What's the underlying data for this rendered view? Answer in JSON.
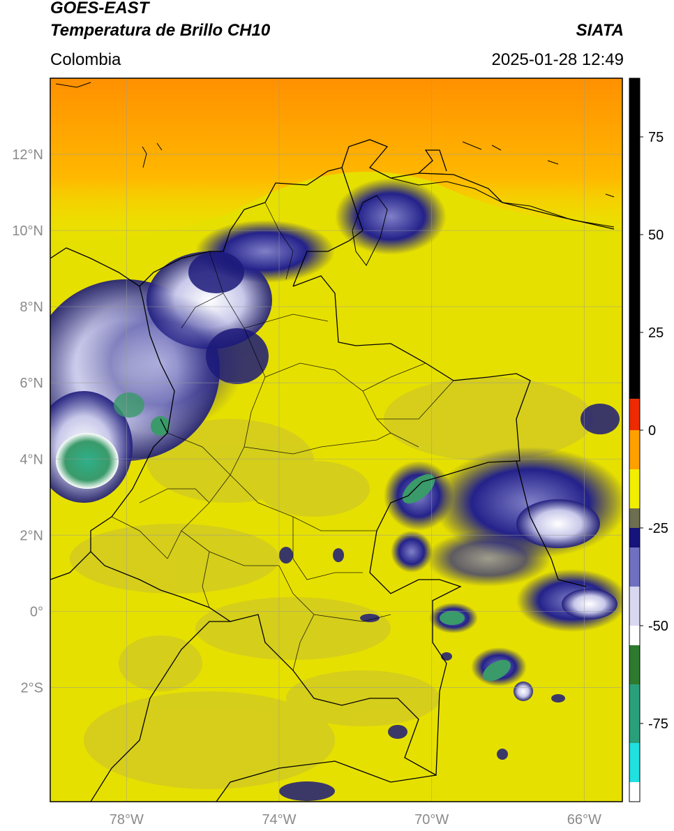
{
  "header": {
    "satellite": "GOES-EAST",
    "product": "Temperatura de Brillo CH10",
    "organization": "SIATA",
    "region": "Colombia",
    "timestamp": "2025-01-28 12:49"
  },
  "map": {
    "lon_range": [
      -80,
      -65
    ],
    "lat_range": [
      -5,
      14
    ],
    "lon_ticks": [
      {
        "value": -78,
        "label": "78°W"
      },
      {
        "value": -74,
        "label": "74°W"
      },
      {
        "value": -70,
        "label": "70°W"
      },
      {
        "value": -66,
        "label": "66°W"
      }
    ],
    "lat_ticks": [
      {
        "value": 12,
        "label": "12°N"
      },
      {
        "value": 10,
        "label": "10°N"
      },
      {
        "value": 8,
        "label": "8°N"
      },
      {
        "value": 6,
        "label": "6°N"
      },
      {
        "value": 4,
        "label": "4°N"
      },
      {
        "value": 2,
        "label": "2°N"
      },
      {
        "value": 0,
        "label": "0°"
      },
      {
        "value": -2,
        "label": "2°S"
      }
    ],
    "background_color": "#e6e000",
    "colors": {
      "yellow": "#f0ec00",
      "olive": "#c8c032",
      "orange": "#ffa400",
      "navy": "#1c1a7a",
      "lavender": "#b8b8e0",
      "green": "#3a9a6a",
      "teal": "#2fb08a",
      "border": "#000000"
    }
  },
  "colorbar": {
    "range": [
      -95,
      90
    ],
    "ticks": [
      {
        "value": 75,
        "label": "75"
      },
      {
        "value": 50,
        "label": "50"
      },
      {
        "value": 25,
        "label": "25"
      },
      {
        "value": 0,
        "label": "0"
      },
      {
        "value": -25,
        "label": "-25"
      },
      {
        "value": -50,
        "label": "-50"
      },
      {
        "value": -75,
        "label": "-75"
      }
    ],
    "segments": [
      {
        "from": 8,
        "to": 90,
        "color": "#000000"
      },
      {
        "from": 0,
        "to": 8,
        "color": "#ee2a00"
      },
      {
        "from": -10,
        "to": 0,
        "color": "#ffa000"
      },
      {
        "from": -20,
        "to": -10,
        "color": "#f2ee00"
      },
      {
        "from": -25,
        "to": -20,
        "color": "#6e6e50"
      },
      {
        "from": -30,
        "to": -25,
        "color": "#14147a"
      },
      {
        "from": -40,
        "to": -30,
        "color": "#7070c0"
      },
      {
        "from": -50,
        "to": -40,
        "color": "#d8d8f0"
      },
      {
        "from": -55,
        "to": -50,
        "color": "#ffffff"
      },
      {
        "from": -65,
        "to": -55,
        "color": "#2e7a2e"
      },
      {
        "from": -80,
        "to": -65,
        "color": "#2aa07a"
      },
      {
        "from": -90,
        "to": -80,
        "color": "#20e0e0"
      },
      {
        "from": -95,
        "to": -90,
        "color": "#ffffff"
      }
    ]
  }
}
